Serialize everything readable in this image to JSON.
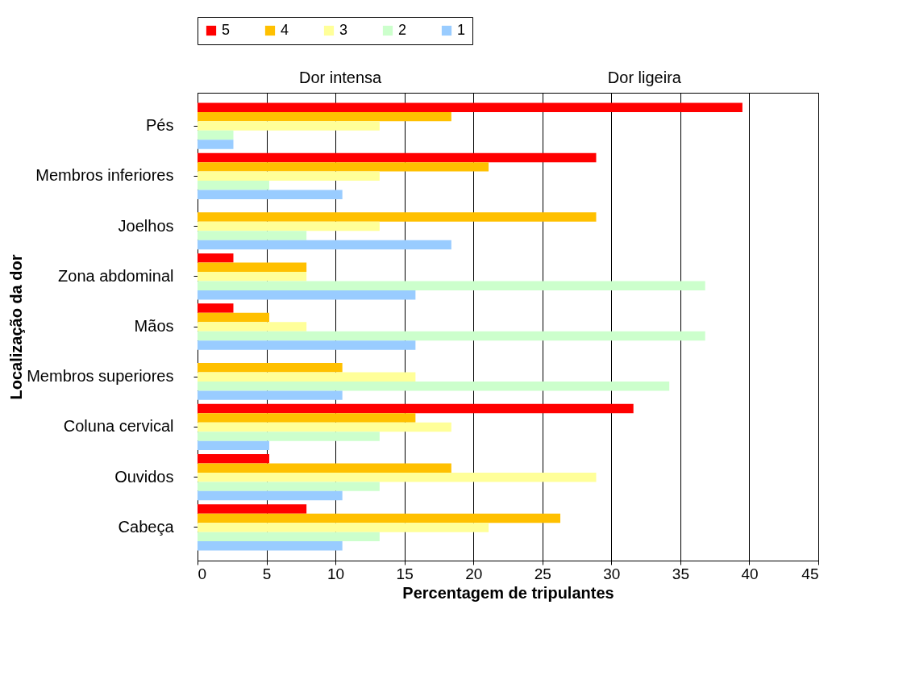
{
  "chart_data": {
    "type": "bar",
    "orientation": "horizontal",
    "xlabel": "Percentagem de tripulantes",
    "ylabel": "Localização da dor",
    "categories": [
      "Pés",
      "Membros inferiores",
      "Joelhos",
      "Zona abdominal",
      "Mãos",
      "Membros superiores",
      "Coluna cervical",
      "Ouvidos",
      "Cabeça"
    ],
    "series": [
      {
        "name": "5",
        "color": "#ff0000",
        "values": [
          39.5,
          28.9,
          null,
          2.6,
          2.6,
          null,
          31.6,
          5.2,
          7.9
        ]
      },
      {
        "name": "4",
        "color": "#ffc000",
        "values": [
          18.4,
          21.1,
          28.9,
          7.9,
          5.2,
          10.5,
          15.8,
          18.4,
          26.3
        ]
      },
      {
        "name": "3",
        "color": "#ffff99",
        "values": [
          13.2,
          13.2,
          13.2,
          7.9,
          7.9,
          15.8,
          18.4,
          28.9,
          21.1
        ]
      },
      {
        "name": "2",
        "color": "#ccffcc",
        "values": [
          2.6,
          5.2,
          7.9,
          36.8,
          36.8,
          34.2,
          13.2,
          13.2,
          13.2
        ]
      },
      {
        "name": "1",
        "color": "#99ccff",
        "values": [
          2.6,
          10.5,
          18.4,
          15.8,
          15.8,
          10.5,
          5.2,
          10.5,
          10.5
        ]
      }
    ],
    "xlim": [
      0,
      45
    ],
    "xticks": [
      0,
      5,
      10,
      15,
      20,
      25,
      30,
      35,
      40,
      45
    ],
    "grid": "x",
    "legend": "top",
    "annotations": [
      "Dor intensa",
      "Dor ligeira"
    ]
  }
}
